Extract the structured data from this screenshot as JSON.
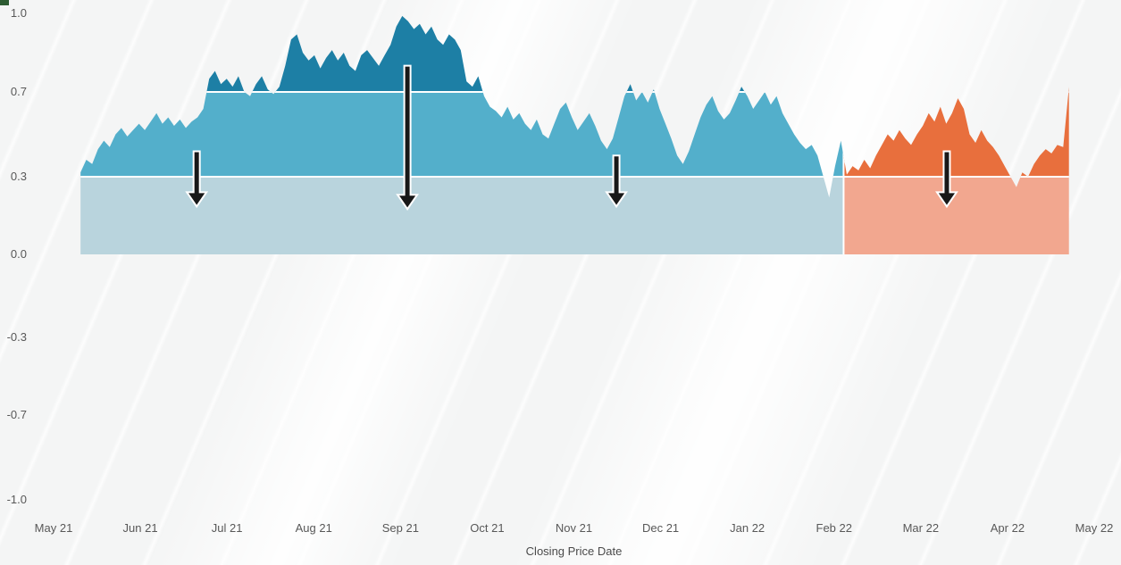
{
  "chart_data": {
    "type": "area",
    "xlabel": "Closing Price Date",
    "ylabel": "",
    "ylim": [
      -1.0,
      1.0
    ],
    "grid": false,
    "legend": false,
    "x_tick_labels": [
      "May 21",
      "Jun 21",
      "Jul 21",
      "Aug 21",
      "Sep 21",
      "Oct 21",
      "Nov 21",
      "Dec 21",
      "Jan 22",
      "Feb 22",
      "Mar 22",
      "Apr 22",
      "May 22"
    ],
    "y_ticks": [
      {
        "label": "1.0",
        "value": 1.0
      },
      {
        "label": "0.7",
        "value": 0.7
      },
      {
        "label": "0.3",
        "value": 0.3
      },
      {
        "label": "0.0",
        "value": 0.0
      },
      {
        "label": "-0.3",
        "value": -0.3
      },
      {
        "label": "-0.7",
        "value": -0.7
      },
      {
        "label": "-1.0",
        "value": -1.0
      }
    ],
    "band_thresholds": [
      0,
      0.3,
      0.7
    ],
    "divider_color": "#ffffff",
    "annotation_color": "#181818",
    "segments": [
      {
        "name": "period-2021-blue",
        "t_start": 0.31,
        "t_end": 9.11,
        "colors": {
          "low": "#b9d4dd",
          "mid": "#53afcb",
          "high": "#1d7fa5"
        }
      },
      {
        "name": "period-2022-orange",
        "t_start": 9.11,
        "t_end": 11.71,
        "colors": {
          "low": "#f2a78f",
          "mid": "#e86f3d",
          "high": "#e86f3d"
        }
      }
    ],
    "series": [
      {
        "name": "closing-price-correlation",
        "t_start": 0.31,
        "t_end": 11.71,
        "values": [
          0.32,
          0.38,
          0.36,
          0.43,
          0.47,
          0.44,
          0.5,
          0.53,
          0.49,
          0.52,
          0.55,
          0.52,
          0.56,
          0.6,
          0.55,
          0.58,
          0.54,
          0.57,
          0.53,
          0.56,
          0.58,
          0.62,
          0.75,
          0.78,
          0.73,
          0.75,
          0.72,
          0.76,
          0.7,
          0.68,
          0.73,
          0.76,
          0.71,
          0.69,
          0.72,
          0.8,
          0.9,
          0.92,
          0.85,
          0.82,
          0.84,
          0.79,
          0.83,
          0.86,
          0.82,
          0.85,
          0.8,
          0.78,
          0.84,
          0.86,
          0.83,
          0.8,
          0.84,
          0.88,
          0.95,
          0.99,
          0.97,
          0.94,
          0.96,
          0.92,
          0.95,
          0.9,
          0.88,
          0.92,
          0.9,
          0.86,
          0.74,
          0.72,
          0.76,
          0.68,
          0.63,
          0.61,
          0.58,
          0.63,
          0.57,
          0.6,
          0.55,
          0.52,
          0.57,
          0.5,
          0.48,
          0.55,
          0.62,
          0.65,
          0.58,
          0.52,
          0.56,
          0.6,
          0.54,
          0.47,
          0.43,
          0.48,
          0.58,
          0.68,
          0.73,
          0.66,
          0.7,
          0.65,
          0.71,
          0.62,
          0.55,
          0.48,
          0.4,
          0.36,
          0.42,
          0.5,
          0.58,
          0.64,
          0.68,
          0.61,
          0.57,
          0.6,
          0.66,
          0.72,
          0.68,
          0.62,
          0.66,
          0.7,
          0.64,
          0.68,
          0.6,
          0.55,
          0.5,
          0.46,
          0.43,
          0.45,
          0.4,
          0.3,
          0.22,
          0.35,
          0.47,
          0.31,
          0.35,
          0.33,
          0.38,
          0.34,
          0.4,
          0.45,
          0.5,
          0.47,
          0.52,
          0.48,
          0.45,
          0.5,
          0.54,
          0.6,
          0.56,
          0.63,
          0.55,
          0.6,
          0.67,
          0.62,
          0.5,
          0.46,
          0.52,
          0.47,
          0.44,
          0.4,
          0.35,
          0.3,
          0.26,
          0.32,
          0.3,
          0.36,
          0.4,
          0.43,
          0.41,
          0.45,
          0.44,
          0.72
        ]
      }
    ],
    "annotations": [
      {
        "shape": "down-arrow",
        "t": 1.65,
        "v_top": 0.42,
        "v_bottom": 0.185
      },
      {
        "shape": "down-arrow",
        "t": 4.08,
        "v_top": 0.8,
        "v_bottom": 0.175
      },
      {
        "shape": "down-arrow",
        "t": 6.49,
        "v_top": 0.4,
        "v_bottom": 0.185
      },
      {
        "shape": "down-arrow",
        "t": 10.3,
        "v_top": 0.42,
        "v_bottom": 0.185
      }
    ]
  }
}
